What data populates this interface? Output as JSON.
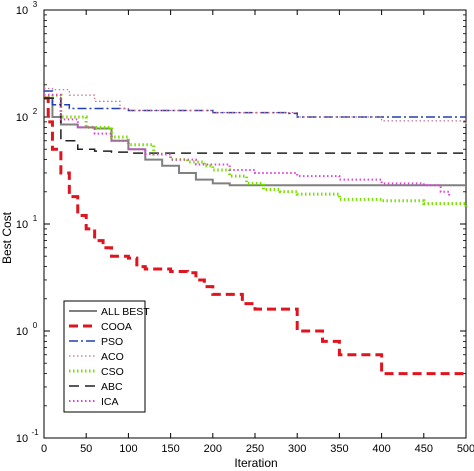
{
  "chart_data": {
    "type": "line",
    "title": "",
    "xlabel": "Iteration",
    "ylabel": "Best Cost",
    "xlim": [
      0,
      500
    ],
    "ylim": [
      0.1,
      1000
    ],
    "yscale": "log",
    "grid": false,
    "legend_position": "bottom-left",
    "x_ticks": [
      "0",
      "50",
      "100",
      "150",
      "200",
      "250",
      "300",
      "350",
      "400",
      "450",
      "500"
    ],
    "y_ticks": [
      {
        "base": "10",
        "exp": "-1"
      },
      {
        "base": "10",
        "exp": "0"
      },
      {
        "base": "10",
        "exp": "1"
      },
      {
        "base": "10",
        "exp": "2"
      },
      {
        "base": "10",
        "exp": "3"
      }
    ],
    "series": [
      {
        "name": "ALL BEST",
        "color": "#808080",
        "dash": "solid",
        "width": 2,
        "points": [
          [
            0,
            150
          ],
          [
            10,
            100
          ],
          [
            20,
            85
          ],
          [
            40,
            80
          ],
          [
            60,
            78
          ],
          [
            80,
            60
          ],
          [
            100,
            50
          ],
          [
            120,
            40
          ],
          [
            140,
            35
          ],
          [
            160,
            30
          ],
          [
            180,
            26
          ],
          [
            200,
            24
          ],
          [
            220,
            23
          ],
          [
            500,
            23
          ]
        ]
      },
      {
        "name": "COOA",
        "color": "#e0141e",
        "dash": "dash",
        "width": 3,
        "points": [
          [
            0,
            150
          ],
          [
            5,
            90
          ],
          [
            10,
            50
          ],
          [
            20,
            30
          ],
          [
            30,
            18
          ],
          [
            40,
            12
          ],
          [
            50,
            9
          ],
          [
            60,
            7
          ],
          [
            70,
            6
          ],
          [
            80,
            5
          ],
          [
            100,
            4.8
          ],
          [
            110,
            4
          ],
          [
            120,
            3.8
          ],
          [
            150,
            3.6
          ],
          [
            170,
            3.5
          ],
          [
            180,
            3
          ],
          [
            190,
            2.6
          ],
          [
            200,
            2.2
          ],
          [
            230,
            2.2
          ],
          [
            235,
            1.8
          ],
          [
            250,
            1.6
          ],
          [
            280,
            1.6
          ],
          [
            300,
            1.0
          ],
          [
            330,
            0.8
          ],
          [
            340,
            0.8
          ],
          [
            350,
            0.6
          ],
          [
            370,
            0.6
          ],
          [
            380,
            0.6
          ],
          [
            400,
            0.4
          ],
          [
            500,
            0.4
          ]
        ]
      },
      {
        "name": "PSO",
        "color": "#2040b0",
        "dash": "dashdot",
        "width": 1.5,
        "points": [
          [
            0,
            175
          ],
          [
            10,
            130
          ],
          [
            30,
            120
          ],
          [
            100,
            115
          ],
          [
            200,
            110
          ],
          [
            290,
            108
          ],
          [
            300,
            100
          ],
          [
            400,
            100
          ],
          [
            500,
            100
          ]
        ]
      },
      {
        "name": "ACO",
        "color": "#c07090",
        "dash": "dot",
        "width": 1.2,
        "points": [
          [
            0,
            185
          ],
          [
            10,
            180
          ],
          [
            30,
            160
          ],
          [
            60,
            140
          ],
          [
            90,
            120
          ],
          [
            100,
            115
          ],
          [
            200,
            110
          ],
          [
            300,
            100
          ],
          [
            400,
            92
          ],
          [
            500,
            85
          ]
        ]
      },
      {
        "name": "CSO",
        "color": "#77e000",
        "dash": "dot",
        "width": 3,
        "points": [
          [
            0,
            160
          ],
          [
            20,
            100
          ],
          [
            50,
            80
          ],
          [
            80,
            65
          ],
          [
            100,
            55
          ],
          [
            130,
            45
          ],
          [
            150,
            40
          ],
          [
            170,
            38
          ],
          [
            190,
            35
          ],
          [
            200,
            32
          ],
          [
            220,
            28
          ],
          [
            240,
            24
          ],
          [
            260,
            21
          ],
          [
            280,
            20
          ],
          [
            300,
            19
          ],
          [
            350,
            17
          ],
          [
            400,
            16.5
          ],
          [
            450,
            15.5
          ],
          [
            500,
            14.5
          ]
        ]
      },
      {
        "name": "ABC",
        "color": "#202020",
        "dash": "longdash",
        "width": 1.5,
        "points": [
          [
            0,
            150
          ],
          [
            20,
            60
          ],
          [
            40,
            50
          ],
          [
            60,
            48
          ],
          [
            80,
            47
          ],
          [
            100,
            46
          ],
          [
            500,
            46
          ]
        ]
      },
      {
        "name": "ICA",
        "color": "#e040e0",
        "dash": "dot",
        "width": 2,
        "points": [
          [
            0,
            160
          ],
          [
            20,
            95
          ],
          [
            40,
            80
          ],
          [
            60,
            70
          ],
          [
            80,
            60
          ],
          [
            100,
            50
          ],
          [
            120,
            45
          ],
          [
            150,
            40
          ],
          [
            180,
            36
          ],
          [
            220,
            32
          ],
          [
            250,
            30
          ],
          [
            300,
            28
          ],
          [
            350,
            26
          ],
          [
            400,
            24
          ],
          [
            450,
            23
          ],
          [
            470,
            20
          ],
          [
            480,
            18
          ]
        ]
      }
    ]
  }
}
